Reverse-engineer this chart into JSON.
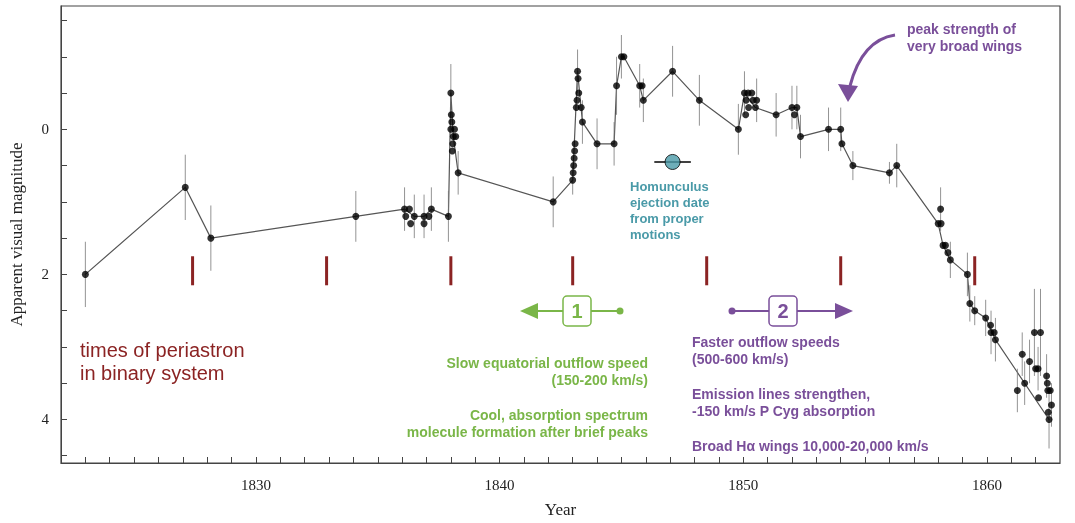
{
  "chart_data": {
    "type": "scatter",
    "xlabel": "Year",
    "ylabel": "Apparent visual magnitude",
    "xlim": [
      1822,
      1863
    ],
    "ylim": [
      4.6,
      -1.7
    ],
    "xticks": [
      {
        "value": 1823,
        "label": null
      },
      {
        "value": 1824,
        "label": null
      },
      {
        "value": 1825,
        "label": null
      },
      {
        "value": 1826,
        "label": null
      },
      {
        "value": 1827,
        "label": null
      },
      {
        "value": 1828,
        "label": null
      },
      {
        "value": 1829,
        "label": null
      },
      1830,
      {
        "value": 1831,
        "label": null
      },
      {
        "value": 1832,
        "label": null
      },
      {
        "value": 1833,
        "label": null
      },
      {
        "value": 1834,
        "label": null
      },
      {
        "value": 1835,
        "label": null
      },
      {
        "value": 1836,
        "label": null
      },
      {
        "value": 1837,
        "label": null
      },
      {
        "value": 1838,
        "label": null
      },
      {
        "value": 1839,
        "label": null
      },
      1840,
      {
        "value": 1841,
        "label": null
      },
      {
        "value": 1842,
        "label": null
      },
      {
        "value": 1843,
        "label": null
      },
      {
        "value": 1844,
        "label": null
      },
      {
        "value": 1845,
        "label": null
      },
      {
        "value": 1846,
        "label": null
      },
      {
        "value": 1847,
        "label": null
      },
      {
        "value": 1848,
        "label": null
      },
      {
        "value": 1849,
        "label": null
      },
      1850,
      {
        "value": 1851,
        "label": null
      },
      {
        "value": 1852,
        "label": null
      },
      {
        "value": 1853,
        "label": null
      },
      {
        "value": 1854,
        "label": null
      },
      {
        "value": 1855,
        "label": null
      },
      {
        "value": 1856,
        "label": null
      },
      {
        "value": 1857,
        "label": null
      },
      {
        "value": 1858,
        "label": null
      },
      {
        "value": 1859,
        "label": null
      },
      1860,
      {
        "value": 1861,
        "label": null
      },
      {
        "value": 1862,
        "label": null
      }
    ],
    "yticks": [
      {
        "value": -1.5,
        "label": null
      },
      {
        "value": -1,
        "label": null
      },
      {
        "value": -0.5,
        "label": null
      },
      0,
      {
        "value": 0.5,
        "label": null
      },
      {
        "value": 1,
        "label": null
      },
      {
        "value": 1.5,
        "label": null
      },
      2,
      {
        "value": 2.5,
        "label": null
      },
      {
        "value": 3,
        "label": null
      },
      {
        "value": 3.5,
        "label": null
      },
      4,
      {
        "value": 4.5,
        "label": null
      }
    ],
    "grid": false,
    "series": [
      {
        "type": "line",
        "color": "#555555",
        "marker": "none",
        "x": [
          1823,
          1827.1,
          1828.15,
          1834.1,
          1836.1,
          1836.5,
          1836.9,
          1837.2,
          1837.9,
          1838.0,
          1838.1,
          1838.3,
          1842.2,
          1843.0,
          1843.2,
          1843.4,
          1844.0,
          1844.7,
          1844.8,
          1845.0,
          1845.1,
          1845.75,
          1845.9,
          1847.1,
          1848.2,
          1849.8,
          1850.05,
          1850.5,
          1851.35,
          1852.0,
          1852.2,
          1852.35,
          1853.5,
          1854.0,
          1854.05,
          1854.5,
          1856.0,
          1856.3,
          1858.0,
          1858.2,
          1858.5,
          1859.2,
          1859.3,
          1859.5,
          1859.95,
          1860.35,
          1862.55
        ],
        "values": [
          2.0,
          0.8,
          1.5,
          1.2,
          1.1,
          1.2,
          1.2,
          1.1,
          1.2,
          -0.5,
          0.1,
          0.6,
          1.0,
          0.7,
          -0.8,
          -0.1,
          0.2,
          0.2,
          -0.6,
          -1.0,
          -1.0,
          -0.6,
          -0.4,
          -0.8,
          -0.4,
          0.0,
          -0.5,
          -0.3,
          -0.2,
          -0.3,
          -0.3,
          0.1,
          0.0,
          0.0,
          0.2,
          0.5,
          0.6,
          0.5,
          1.3,
          1.6,
          1.8,
          2.0,
          2.4,
          2.5,
          2.6,
          2.9,
          4.0
        ]
      },
      {
        "color": "#000000",
        "marker": "circle",
        "x": [
          1823,
          1827.1,
          1828.15,
          1834.1,
          1836.1,
          1836.15,
          1836.3,
          1836.35,
          1836.5,
          1836.9,
          1836.9,
          1837.1,
          1837.2,
          1837.9,
          1838.0,
          1838.0,
          1838.02,
          1838.04,
          1838.06,
          1838.08,
          1838.1,
          1838.15,
          1838.2,
          1838.3,
          1842.2,
          1843.0,
          1843.02,
          1843.04,
          1843.06,
          1843.08,
          1843.1,
          1843.15,
          1843.18,
          1843.2,
          1843.22,
          1843.25,
          1843.35,
          1843.4,
          1844.0,
          1844.7,
          1844.8,
          1845.0,
          1845.1,
          1845.75,
          1845.85,
          1845.9,
          1847.1,
          1848.2,
          1849.8,
          1850.05,
          1850.1,
          1850.12,
          1850.2,
          1850.22,
          1850.35,
          1850.4,
          1850.5,
          1850.55,
          1851.35,
          1852.0,
          1852.1,
          1852.2,
          1852.35,
          1853.5,
          1854.0,
          1854.05,
          1854.5,
          1856.0,
          1856.3,
          1858.0,
          1858.1,
          1858.12,
          1858.2,
          1858.3,
          1858.4,
          1858.5,
          1859.2,
          1859.3,
          1859.5,
          1859.95,
          1860.15,
          1860.17,
          1860.3,
          1860.35,
          1861.25,
          1861.45,
          1861.55,
          1861.75,
          1861.95,
          1862.0,
          1862.1,
          1862.12,
          1862.2,
          1862.45,
          1862.48,
          1862.5,
          1862.52,
          1862.55,
          1862.6,
          1862.65
        ],
        "values": [
          2.0,
          0.8,
          1.5,
          1.2,
          1.1,
          1.2,
          1.1,
          1.3,
          1.2,
          1.2,
          1.3,
          1.2,
          1.1,
          1.2,
          0.0,
          -0.5,
          -0.2,
          -0.1,
          0.3,
          0.2,
          0.1,
          0.0,
          0.1,
          0.6,
          1.0,
          0.7,
          0.6,
          0.5,
          0.4,
          0.3,
          0.2,
          -0.3,
          -0.4,
          -0.8,
          -0.7,
          -0.5,
          -0.3,
          -0.1,
          0.2,
          0.2,
          -0.6,
          -1.0,
          -1.0,
          -0.6,
          -0.6,
          -0.4,
          -0.8,
          -0.4,
          0.0,
          -0.5,
          -0.2,
          -0.4,
          -0.5,
          -0.3,
          -0.5,
          -0.4,
          -0.3,
          -0.4,
          -0.2,
          -0.3,
          -0.2,
          -0.3,
          0.1,
          0.0,
          0.0,
          0.2,
          0.5,
          0.6,
          0.5,
          1.3,
          1.1,
          1.3,
          1.6,
          1.6,
          1.7,
          1.8,
          2.0,
          2.4,
          2.5,
          2.6,
          2.7,
          2.8,
          2.8,
          2.9,
          3.6,
          3.1,
          3.5,
          3.2,
          2.8,
          3.3,
          3.3,
          3.7,
          2.8,
          3.4,
          3.5,
          3.6,
          3.9,
          4.0,
          3.6,
          3.8
        ],
        "errors": [
          0.45,
          0.45,
          0.45,
          0.35,
          0.3,
          null,
          null,
          null,
          0.3,
          0.3,
          null,
          null,
          0.3,
          0.35,
          null,
          0.4,
          null,
          null,
          null,
          null,
          null,
          null,
          null,
          0.3,
          0.35,
          0.2,
          null,
          null,
          null,
          null,
          null,
          null,
          null,
          0.3,
          null,
          null,
          null,
          0.3,
          0.35,
          0.3,
          0.4,
          0.3,
          null,
          0.3,
          null,
          0.3,
          0.35,
          0.35,
          0.35,
          0.3,
          null,
          null,
          null,
          null,
          null,
          null,
          null,
          0.3,
          0.3,
          0.3,
          null,
          0.3,
          0.3,
          0.3,
          0.3,
          null,
          0.2,
          0.15,
          0.3,
          null,
          0.3,
          null,
          null,
          null,
          null,
          0.25,
          0.3,
          0.25,
          0.2,
          0.25,
          null,
          0.3,
          null,
          0.3,
          0.3,
          0.3,
          0.3,
          0.3,
          0.6,
          null,
          0.3,
          null,
          0.6,
          0.3,
          null,
          null,
          null,
          0.4,
          null,
          0.3
        ]
      },
      {
        "color": "#4a9aa8",
        "marker": "circle",
        "x": [
          1847.1
        ],
        "values": [
          0.45
        ],
        "xerrors": [
          0.75
        ]
      },
      {
        "type": "bar",
        "color": "#8b2323",
        "x": [
          1827.4,
          1832.9,
          1838.0,
          1843.0,
          1848.5,
          1854.0,
          1859.5
        ],
        "values": [
          0.4,
          0.4,
          0.4,
          0.4,
          0.4,
          0.4,
          0.4
        ],
        "base": [
          1.75,
          1.75,
          1.75,
          1.75,
          1.75,
          1.75,
          1.75
        ]
      }
    ],
    "annotations": [
      "times of periastron\nin binary system",
      "Slow equatorial outflow speed\n(150-200 km/s)",
      "Cool, absorption spectrum\nmolecule formation after brief peaks",
      "Faster outflow speeds\n(500-600 km/s)",
      "Emission lines strengthen,\n-150 km/s P Cyg absorption",
      "Broad Hα wings 10,000-20,000 km/s",
      "Homunculus\nejection date\nfrom proper\nmotions",
      "peak strength of\nvery broad wings",
      "1",
      "2"
    ]
  }
}
